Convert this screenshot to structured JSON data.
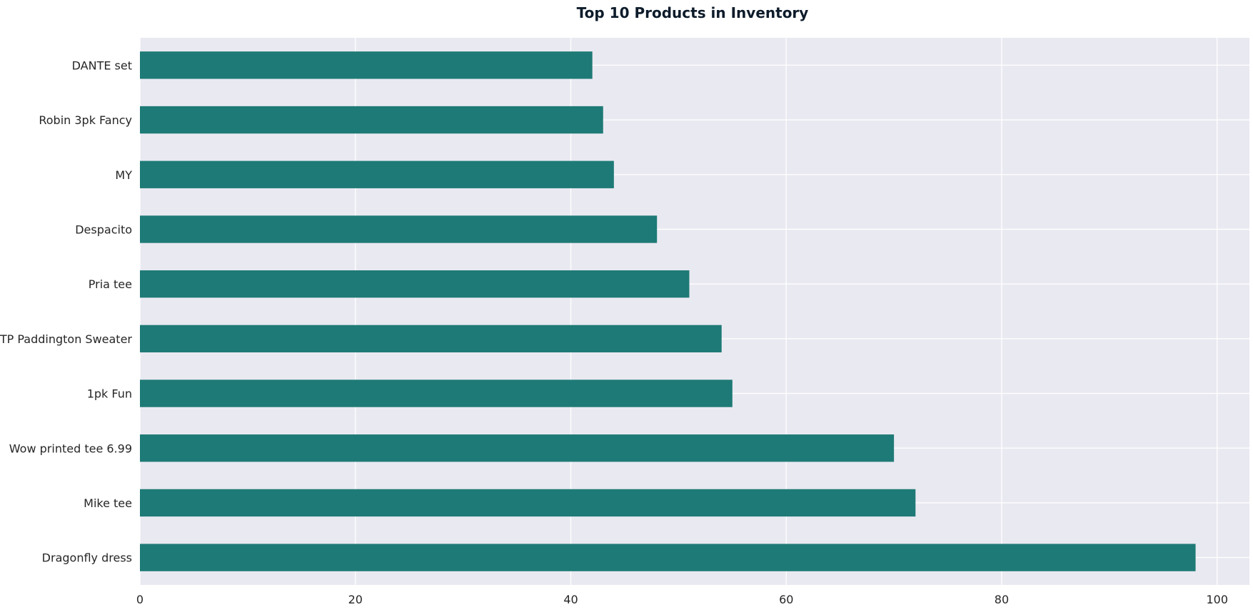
{
  "chart_data": {
    "type": "bar",
    "orientation": "horizontal",
    "title": "Top 10 Products in Inventory",
    "xlabel": "",
    "ylabel": "",
    "categories": [
      "DANTE set",
      "Robin 3pk Fancy",
      "MY",
      "Despacito",
      "Pria tee",
      "TP Paddington Sweater",
      "1pk Fun",
      "Wow printed tee 6.99",
      "Mike tee",
      "Dragonfly dress"
    ],
    "values": [
      42,
      43,
      44,
      48,
      51,
      54,
      55,
      70,
      72,
      98
    ],
    "xlim": [
      0,
      103
    ],
    "xticks": [
      "0",
      "20",
      "40",
      "60",
      "80",
      "100"
    ],
    "grid": true,
    "colors": {
      "bar": "#1e7a76",
      "plot_background": "#e9e9f1",
      "grid": "#ffffff",
      "title": "#0d1b2a",
      "tick_label": "#262626"
    }
  }
}
